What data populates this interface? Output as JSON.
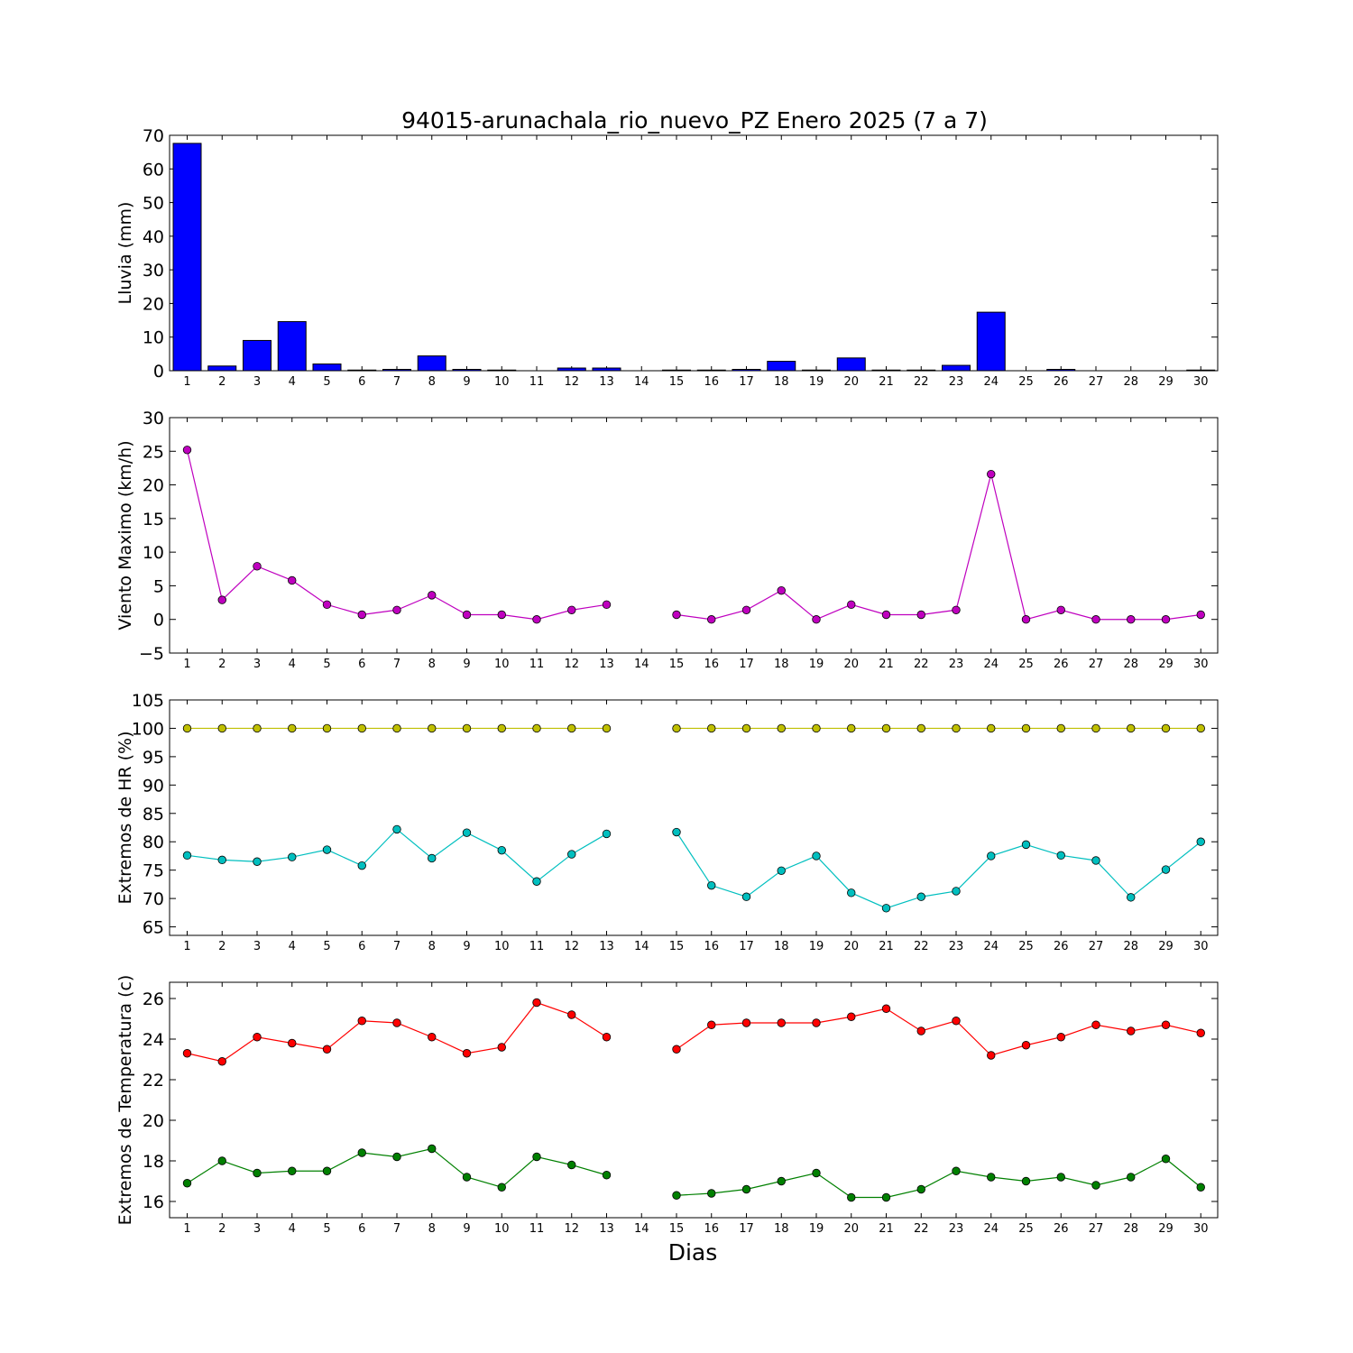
{
  "title": "94015-arunachala_rio_nuevo_PZ Enero 2025  (7 a 7)",
  "xlabel": "Dias",
  "colors": {
    "rain": "#0000ff",
    "wind": "#bf00bf",
    "hr_max": "#bfbf00",
    "hr_min": "#00bfbf",
    "temp_max": "#ff0000",
    "temp_min": "#008000"
  },
  "chart_data": [
    {
      "type": "bar",
      "ylabel": "Lluvia (mm)",
      "ylim": [
        0,
        70
      ],
      "yticks": [
        0,
        10,
        20,
        30,
        40,
        50,
        60,
        70
      ],
      "categories": [
        "1",
        "2",
        "3",
        "4",
        "5",
        "6",
        "7",
        "8",
        "9",
        "10",
        "11",
        "12",
        "13",
        "14",
        "15",
        "16",
        "17",
        "18",
        "19",
        "20",
        "21",
        "22",
        "23",
        "24",
        "25",
        "26",
        "27",
        "28",
        "29",
        "30"
      ],
      "values": [
        67.6,
        1.4,
        9.0,
        14.6,
        2.0,
        0.2,
        0.4,
        4.4,
        0.4,
        0.2,
        0.0,
        0.8,
        0.8,
        0.0,
        0.2,
        0.2,
        0.4,
        2.8,
        0.2,
        3.8,
        0.2,
        0.2,
        1.6,
        17.4,
        0.0,
        0.4,
        0.0,
        0.0,
        0.0,
        0.2
      ]
    },
    {
      "type": "line",
      "ylabel": "Viento Maximo (km/h)",
      "ylim": [
        -5,
        30
      ],
      "yticks": [
        -5,
        0,
        5,
        10,
        15,
        20,
        25,
        30
      ],
      "categories": [
        "1",
        "2",
        "3",
        "4",
        "5",
        "6",
        "7",
        "8",
        "9",
        "10",
        "11",
        "12",
        "13",
        "14",
        "15",
        "16",
        "17",
        "18",
        "19",
        "20",
        "21",
        "22",
        "23",
        "24",
        "25",
        "26",
        "27",
        "28",
        "29",
        "30"
      ],
      "series": [
        {
          "color_key": "wind",
          "values": [
            25.2,
            2.9,
            7.9,
            5.8,
            2.2,
            0.7,
            1.4,
            3.6,
            0.7,
            0.7,
            0.0,
            1.4,
            2.2,
            null,
            0.7,
            0.0,
            1.4,
            4.3,
            0.0,
            2.2,
            0.7,
            0.7,
            1.4,
            21.6,
            0.0,
            1.4,
            0.0,
            0.0,
            0.0,
            0.7
          ]
        }
      ]
    },
    {
      "type": "line",
      "ylabel": "Extremos de HR (%)",
      "ylim": [
        63.5,
        105
      ],
      "yticks": [
        65,
        70,
        75,
        80,
        85,
        90,
        95,
        100,
        105
      ],
      "categories": [
        "1",
        "2",
        "3",
        "4",
        "5",
        "6",
        "7",
        "8",
        "9",
        "10",
        "11",
        "12",
        "13",
        "14",
        "15",
        "16",
        "17",
        "18",
        "19",
        "20",
        "21",
        "22",
        "23",
        "24",
        "25",
        "26",
        "27",
        "28",
        "29",
        "30"
      ],
      "series": [
        {
          "color_key": "hr_max",
          "values": [
            100,
            100,
            100,
            100,
            100,
            100,
            100,
            100,
            100,
            100,
            100,
            100,
            100,
            null,
            100,
            100,
            100,
            100,
            100,
            100,
            100,
            100,
            100,
            100,
            100,
            100,
            100,
            100,
            100,
            100
          ]
        },
        {
          "color_key": "hr_min",
          "values": [
            77.6,
            76.8,
            76.5,
            77.3,
            78.6,
            75.8,
            82.2,
            77.1,
            81.6,
            78.5,
            73.0,
            77.8,
            81.4,
            null,
            81.7,
            72.3,
            70.3,
            74.9,
            77.5,
            71.0,
            68.3,
            70.3,
            71.3,
            77.5,
            79.5,
            77.6,
            76.7,
            70.2,
            75.1,
            80.0
          ]
        }
      ]
    },
    {
      "type": "line",
      "ylabel": "Extremos de Temperatura (c)",
      "ylim": [
        15.2,
        26.8
      ],
      "yticks": [
        16,
        18,
        20,
        22,
        24,
        26
      ],
      "categories": [
        "1",
        "2",
        "3",
        "4",
        "5",
        "6",
        "7",
        "8",
        "9",
        "10",
        "11",
        "12",
        "13",
        "14",
        "15",
        "16",
        "17",
        "18",
        "19",
        "20",
        "21",
        "22",
        "23",
        "24",
        "25",
        "26",
        "27",
        "28",
        "29",
        "30"
      ],
      "series": [
        {
          "color_key": "temp_max",
          "values": [
            23.3,
            22.9,
            24.1,
            23.8,
            23.5,
            24.9,
            24.8,
            24.1,
            23.3,
            23.6,
            25.8,
            25.2,
            24.1,
            null,
            23.5,
            24.7,
            24.8,
            24.8,
            24.8,
            25.1,
            25.5,
            24.4,
            24.9,
            23.2,
            23.7,
            24.1,
            24.7,
            24.4,
            24.7,
            24.3
          ]
        },
        {
          "color_key": "temp_min",
          "values": [
            16.9,
            18.0,
            17.4,
            17.5,
            17.5,
            18.4,
            18.2,
            18.6,
            17.2,
            16.7,
            18.2,
            17.8,
            17.3,
            null,
            16.3,
            16.4,
            16.6,
            17.0,
            17.4,
            16.2,
            16.2,
            16.6,
            17.5,
            17.2,
            17.0,
            17.2,
            16.8,
            17.2,
            18.1,
            16.7
          ]
        }
      ]
    }
  ]
}
